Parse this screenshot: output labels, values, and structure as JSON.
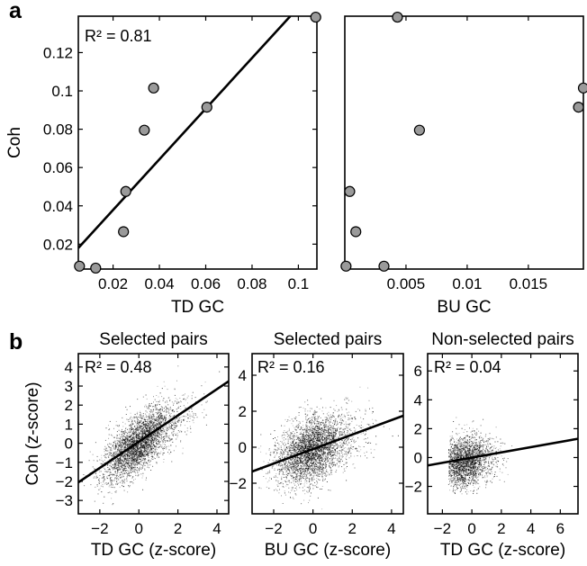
{
  "figure": {
    "panel_labels": {
      "a": "a",
      "b": "b"
    }
  },
  "chart_data": [
    {
      "id": "a-left",
      "panel": "a",
      "type": "scatter",
      "title": "",
      "xlabel": "TD GC",
      "ylabel": "Coh",
      "xlim": [
        0.005,
        0.108
      ],
      "ylim": [
        0.007,
        0.139
      ],
      "xticks": [
        0.02,
        0.04,
        0.06,
        0.08,
        0.1
      ],
      "xtick_labels": [
        "0.02",
        "0.04",
        "0.06",
        "0.08",
        "0.1"
      ],
      "yticks": [
        0.02,
        0.04,
        0.06,
        0.08,
        0.1,
        0.12
      ],
      "ytick_labels": [
        "0.02",
        "0.04",
        "0.06",
        "0.08",
        "0.1",
        "0.12"
      ],
      "annotation": "R² = 0.81",
      "points": [
        {
          "x": 0.0055,
          "y": 0.0085
        },
        {
          "x": 0.0125,
          "y": 0.0075
        },
        {
          "x": 0.0245,
          "y": 0.0265
        },
        {
          "x": 0.0255,
          "y": 0.0475
        },
        {
          "x": 0.0335,
          "y": 0.0795
        },
        {
          "x": 0.0375,
          "y": 0.1015
        },
        {
          "x": 0.0605,
          "y": 0.0915
        },
        {
          "x": 0.1075,
          "y": 0.1385
        }
      ],
      "fit_line": {
        "x": [
          0.005,
          0.0965
        ],
        "y": [
          0.018,
          0.139
        ]
      },
      "marker_color": "#9a9a9a"
    },
    {
      "id": "a-right",
      "panel": "a",
      "type": "scatter",
      "title": "",
      "xlabel": "BU GC",
      "ylabel": "",
      "xlim": [
        0.0,
        0.0195
      ],
      "ylim": [
        0.007,
        0.139
      ],
      "xticks": [
        0.005,
        0.01,
        0.015
      ],
      "xtick_labels": [
        "0.005",
        "0.01",
        "0.015"
      ],
      "yticks": [],
      "ytick_labels": [],
      "points": [
        {
          "x": 0.0001,
          "y": 0.0085
        },
        {
          "x": 0.0004,
          "y": 0.0475
        },
        {
          "x": 0.0009,
          "y": 0.0265
        },
        {
          "x": 0.0032,
          "y": 0.0085
        },
        {
          "x": 0.0043,
          "y": 0.1385
        },
        {
          "x": 0.0061,
          "y": 0.0795
        },
        {
          "x": 0.0191,
          "y": 0.0915
        },
        {
          "x": 0.0195,
          "y": 0.1015
        }
      ],
      "marker_color": "#9a9a9a"
    },
    {
      "id": "b-1",
      "panel": "b",
      "type": "scatter",
      "title": "Selected pairs",
      "xlabel": "TD GC (z-score)",
      "ylabel": "Coh (z-score)",
      "xlim": [
        -3.1,
        4.6
      ],
      "ylim": [
        -3.7,
        4.7
      ],
      "xticks": [
        -2,
        0,
        2,
        4
      ],
      "xtick_labels": [
        "−2",
        "0",
        "2",
        "4"
      ],
      "yticks": [
        -3,
        -2,
        -1,
        0,
        1,
        2,
        3,
        4
      ],
      "ytick_labels": [
        "−3",
        "−2",
        "−1",
        "0",
        "1",
        "2",
        "3",
        "4"
      ],
      "annotation": "R² = 0.48",
      "fit_line": {
        "x": [
          -3.1,
          4.6
        ],
        "y": [
          -2.05,
          3.25
        ]
      },
      "point_cloud": {
        "n_points": 3500,
        "x_mean": 0.0,
        "x_sd": 0.95,
        "y_mean": 0.0,
        "y_sd": 1.0,
        "correlation": 0.69,
        "x_range": [
          -3.0,
          4.5
        ],
        "y_range": [
          -3.6,
          4.6
        ]
      }
    },
    {
      "id": "b-2",
      "panel": "b",
      "type": "scatter",
      "title": "Selected pairs",
      "xlabel": "BU GC (z-score)",
      "ylabel": "",
      "xlim": [
        -3.1,
        4.6
      ],
      "ylim": [
        -3.7,
        5.2
      ],
      "xticks": [
        -2,
        0,
        2,
        4
      ],
      "xtick_labels": [
        "−2",
        "0",
        "2",
        "4"
      ],
      "yticks": [
        -2,
        0,
        2,
        4
      ],
      "ytick_labels": [
        "−2",
        "0",
        "2",
        "4"
      ],
      "annotation": "R² = 0.16",
      "fit_line": {
        "x": [
          -3.1,
          4.6
        ],
        "y": [
          -1.35,
          1.75
        ]
      },
      "point_cloud": {
        "n_points": 3500,
        "x_mean": 0.0,
        "x_sd": 0.95,
        "y_mean": -0.1,
        "y_sd": 1.0,
        "correlation": 0.4,
        "x_range": [
          -3.0,
          4.5
        ],
        "y_range": [
          -3.5,
          5.0
        ]
      }
    },
    {
      "id": "b-3",
      "panel": "b",
      "type": "scatter",
      "title": "Non-selected pairs",
      "xlabel": "TD GC (z-score)",
      "ylabel": "",
      "xlim": [
        -3.0,
        7.2
      ],
      "ylim": [
        -3.9,
        7.2
      ],
      "xticks": [
        -2,
        0,
        2,
        4,
        6
      ],
      "xtick_labels": [
        "−2",
        "0",
        "2",
        "4",
        "6"
      ],
      "yticks": [
        -2,
        0,
        2,
        4,
        6
      ],
      "ytick_labels": [
        "−2",
        "0",
        "2",
        "4",
        "6"
      ],
      "annotation": "R² = 0.04",
      "fit_line": {
        "x": [
          -3.0,
          7.2
        ],
        "y": [
          -0.55,
          1.3
        ]
      },
      "point_cloud": {
        "n_points": 2500,
        "x_mean": -0.5,
        "x_sd": 0.9,
        "y_mean": -0.3,
        "y_sd": 0.9,
        "correlation": 0.2,
        "x_range": [
          -1.6,
          6.5
        ],
        "y_range": [
          -2.5,
          4.0
        ]
      }
    }
  ]
}
